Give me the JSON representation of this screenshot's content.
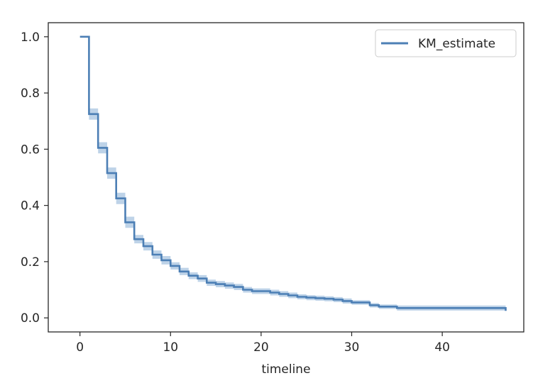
{
  "chart_data": {
    "type": "line",
    "subtype": "step",
    "title": "",
    "xlabel": "timeline",
    "ylabel": "",
    "xlim": [
      -3.5,
      49
    ],
    "ylim": [
      -0.05,
      1.05
    ],
    "xticks": [
      0,
      10,
      20,
      30,
      40
    ],
    "xtick_labels": [
      "0",
      "10",
      "20",
      "30",
      "40"
    ],
    "yticks": [
      0.0,
      0.2,
      0.4,
      0.6,
      0.8,
      1.0
    ],
    "ytick_labels": [
      "0.0",
      "0.2",
      "0.4",
      "0.6",
      "0.8",
      "1.0"
    ],
    "grid": false,
    "legend": {
      "position": "top-right",
      "entries": [
        "KM_estimate"
      ]
    },
    "colors": {
      "line": "#4c7fb5",
      "band": "#a8c4e0",
      "axis": "#262626"
    },
    "series": [
      {
        "name": "KM_estimate",
        "x": [
          0,
          1,
          2,
          3,
          4,
          5,
          6,
          7,
          8,
          9,
          10,
          11,
          12,
          13,
          14,
          15,
          16,
          17,
          18,
          19,
          20,
          21,
          22,
          23,
          24,
          25,
          26,
          27,
          28,
          29,
          30,
          31,
          32,
          33,
          34,
          35,
          36,
          37,
          38,
          39,
          40,
          41,
          42,
          43,
          44,
          45,
          46,
          47
        ],
        "y": [
          1.0,
          0.725,
          0.605,
          0.515,
          0.425,
          0.34,
          0.28,
          0.255,
          0.225,
          0.205,
          0.185,
          0.165,
          0.15,
          0.14,
          0.125,
          0.12,
          0.115,
          0.11,
          0.1,
          0.095,
          0.095,
          0.09,
          0.085,
          0.08,
          0.075,
          0.072,
          0.07,
          0.068,
          0.065,
          0.06,
          0.055,
          0.055,
          0.045,
          0.04,
          0.04,
          0.035,
          0.035,
          0.035,
          0.035,
          0.035,
          0.035,
          0.035,
          0.035,
          0.035,
          0.035,
          0.035,
          0.035,
          0.025
        ],
        "ci_lower": [
          1.0,
          0.705,
          0.585,
          0.495,
          0.405,
          0.32,
          0.265,
          0.24,
          0.21,
          0.19,
          0.172,
          0.152,
          0.138,
          0.128,
          0.114,
          0.109,
          0.104,
          0.099,
          0.09,
          0.085,
          0.085,
          0.08,
          0.075,
          0.07,
          0.066,
          0.063,
          0.061,
          0.059,
          0.056,
          0.051,
          0.047,
          0.047,
          0.037,
          0.032,
          0.032,
          0.026,
          0.026,
          0.026,
          0.026,
          0.026,
          0.026,
          0.026,
          0.026,
          0.026,
          0.026,
          0.026,
          0.026,
          0.01
        ],
        "ci_upper": [
          1.0,
          0.745,
          0.625,
          0.535,
          0.445,
          0.36,
          0.295,
          0.27,
          0.24,
          0.22,
          0.198,
          0.178,
          0.162,
          0.152,
          0.136,
          0.131,
          0.126,
          0.121,
          0.11,
          0.105,
          0.105,
          0.1,
          0.095,
          0.09,
          0.084,
          0.081,
          0.079,
          0.077,
          0.074,
          0.069,
          0.063,
          0.063,
          0.053,
          0.048,
          0.048,
          0.044,
          0.044,
          0.044,
          0.044,
          0.044,
          0.044,
          0.044,
          0.044,
          0.044,
          0.044,
          0.044,
          0.044,
          0.04
        ]
      }
    ]
  }
}
